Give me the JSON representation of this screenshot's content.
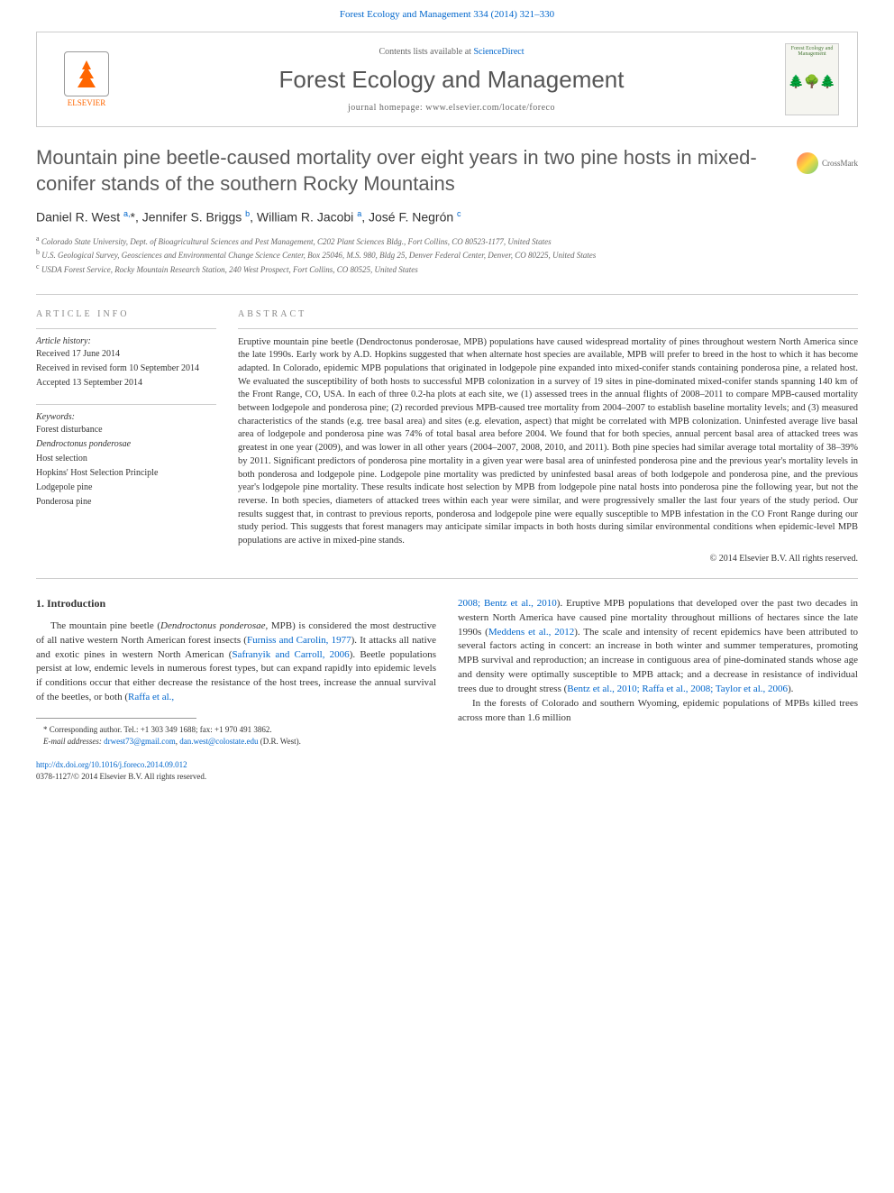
{
  "header": {
    "citation": "Forest Ecology and Management 334 (2014) 321–330",
    "contents_prefix": "Contents lists available at ",
    "contents_link": "ScienceDirect",
    "journal_title": "Forest Ecology and Management",
    "homepage_prefix": "journal homepage: ",
    "homepage_url": "www.elsevier.com/locate/foreco",
    "elsevier_label": "ELSEVIER",
    "cover_text": "Forest Ecology and Management"
  },
  "article": {
    "title": "Mountain pine beetle-caused mortality over eight years in two pine hosts in mixed-conifer stands of the southern Rocky Mountains",
    "crossmark": "CrossMark",
    "authors_html": "Daniel R. West <sup>a,</sup>*, Jennifer S. Briggs <sup>b</sup>, William R. Jacobi <sup>a</sup>, José F. Negrón <sup>c</sup>",
    "affiliations": [
      {
        "sup": "a",
        "text": "Colorado State University, Dept. of Bioagricultural Sciences and Pest Management, C202 Plant Sciences Bldg., Fort Collins, CO 80523-1177, United States"
      },
      {
        "sup": "b",
        "text": "U.S. Geological Survey, Geosciences and Environmental Change Science Center, Box 25046, M.S. 980, Bldg 25, Denver Federal Center, Denver, CO 80225, United States"
      },
      {
        "sup": "c",
        "text": "USDA Forest Service, Rocky Mountain Research Station, 240 West Prospect, Fort Collins, CO 80525, United States"
      }
    ]
  },
  "info": {
    "heading": "ARTICLE INFO",
    "history_label": "Article history:",
    "received": "Received 17 June 2014",
    "revised": "Received in revised form 10 September 2014",
    "accepted": "Accepted 13 September 2014",
    "keywords_label": "Keywords:",
    "keywords": [
      "Forest disturbance",
      "Dendroctonus ponderosae",
      "Host selection",
      "Hopkins' Host Selection Principle",
      "Lodgepole pine",
      "Ponderosa pine"
    ]
  },
  "abstract": {
    "heading": "ABSTRACT",
    "text": "Eruptive mountain pine beetle (Dendroctonus ponderosae, MPB) populations have caused widespread mortality of pines throughout western North America since the late 1990s. Early work by A.D. Hopkins suggested that when alternate host species are available, MPB will prefer to breed in the host to which it has become adapted. In Colorado, epidemic MPB populations that originated in lodgepole pine expanded into mixed-conifer stands containing ponderosa pine, a related host. We evaluated the susceptibility of both hosts to successful MPB colonization in a survey of 19 sites in pine-dominated mixed-conifer stands spanning 140 km of the Front Range, CO, USA. In each of three 0.2-ha plots at each site, we (1) assessed trees in the annual flights of 2008–2011 to compare MPB-caused mortality between lodgepole and ponderosa pine; (2) recorded previous MPB-caused tree mortality from 2004–2007 to establish baseline mortality levels; and (3) measured characteristics of the stands (e.g. tree basal area) and sites (e.g. elevation, aspect) that might be correlated with MPB colonization. Uninfested average live basal area of lodgepole and ponderosa pine was 74% of total basal area before 2004. We found that for both species, annual percent basal area of attacked trees was greatest in one year (2009), and was lower in all other years (2004–2007, 2008, 2010, and 2011). Both pine species had similar average total mortality of 38–39% by 2011. Significant predictors of ponderosa pine mortality in a given year were basal area of uninfested ponderosa pine and the previous year's mortality levels in both ponderosa and lodgepole pine. Lodgepole pine mortality was predicted by uninfested basal areas of both lodgepole and ponderosa pine, and the previous year's lodgepole pine mortality. These results indicate host selection by MPB from lodgepole pine natal hosts into ponderosa pine the following year, but not the reverse. In both species, diameters of attacked trees within each year were similar, and were progressively smaller the last four years of the study period. Our results suggest that, in contrast to previous reports, ponderosa and lodgepole pine were equally susceptible to MPB infestation in the CO Front Range during our study period. This suggests that forest managers may anticipate similar impacts in both hosts during similar environmental conditions when epidemic-level MPB populations are active in mixed-pine stands.",
    "copyright": "© 2014 Elsevier B.V. All rights reserved."
  },
  "body": {
    "section_number": "1.",
    "section_title": "Introduction",
    "col1_p1_pre": "The mountain pine beetle (",
    "col1_p1_em": "Dendroctonus ponderosae,",
    "col1_p1_mid1": " MPB) is considered the most destructive of all native western North American forest insects (",
    "col1_p1_link1": "Furniss and Carolin, 1977",
    "col1_p1_mid2": "). It attacks all native and exotic pines in western North American (",
    "col1_p1_link2": "Safranyik and Carroll, 2006",
    "col1_p1_mid3": "). Beetle populations persist at low, endemic levels in numerous forest types, but can expand rapidly into epidemic levels if conditions occur that either decrease the resistance of the host trees, increase the annual survival of the beetles, or both (",
    "col1_p1_link3": "Raffa et al.,",
    "col2_p1_link1": "2008; Bentz et al., 2010",
    "col2_p1_mid1": "). Eruptive MPB populations that developed over the past two decades in western North America have caused pine mortality throughout millions of hectares since the late 1990s (",
    "col2_p1_link2": "Meddens et al., 2012",
    "col2_p1_mid2": "). The scale and intensity of recent epidemics have been attributed to several factors acting in concert: an increase in both winter and summer temperatures, promoting MPB survival and reproduction; an increase in contiguous area of pine-dominated stands whose age and density were optimally susceptible to MPB attack; and a decrease in resistance of individual trees due to drought stress (",
    "col2_p1_link3": "Bentz et al., 2010; Raffa et al., 2008; Taylor et al., 2006",
    "col2_p1_post": ").",
    "col2_p2": "In the forests of Colorado and southern Wyoming, epidemic populations of MPBs killed trees across more than 1.6 million"
  },
  "footnote": {
    "corr": "* Corresponding author. Tel.: +1 303 349 1688; fax: +1 970 491 3862.",
    "email_label": "E-mail addresses: ",
    "email1": "drwest73@gmail.com",
    "sep": ", ",
    "email2": "dan.west@colostate.edu",
    "tail": " (D.R. West)."
  },
  "doi": {
    "link": "http://dx.doi.org/10.1016/j.foreco.2014.09.012",
    "issn": "0378-1127/© 2014 Elsevier B.V. All rights reserved."
  },
  "colors": {
    "link": "#0066cc",
    "text": "#333333",
    "muted": "#666666",
    "heading_gray": "#5a5a5a",
    "border": "#cccccc",
    "elsevier_orange": "#ff6600"
  }
}
